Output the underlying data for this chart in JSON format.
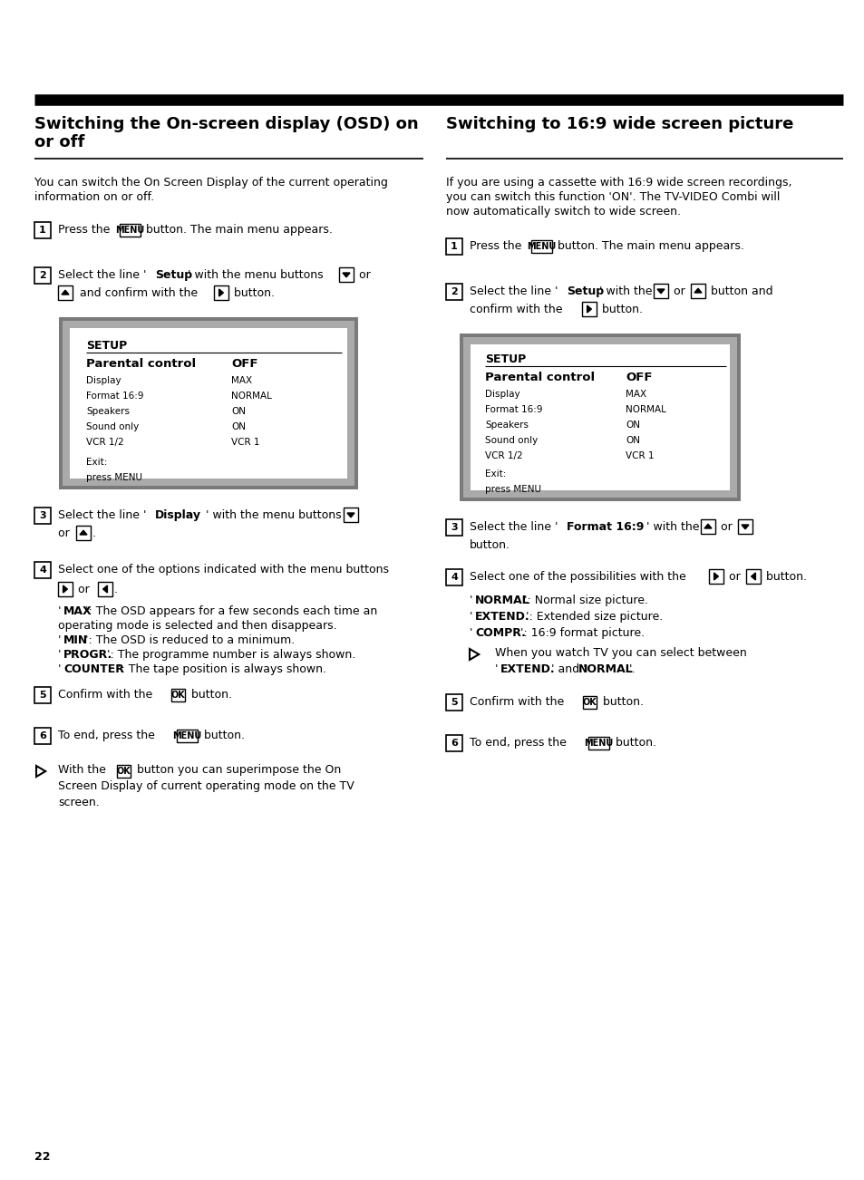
{
  "page_bg": "#ffffff",
  "section1_title_line1": "Switching the On-screen display (OSD) on",
  "section1_title_line2": "or off",
  "section2_title": "Switching to 16:9 wide screen picture",
  "page_number": "22",
  "screen_items": [
    [
      "Display",
      "MAX"
    ],
    [
      "Format 16:9",
      "NORMAL"
    ],
    [
      "Speakers",
      "ON"
    ],
    [
      "Sound only",
      "ON"
    ],
    [
      "VCR 1/2",
      "VCR 1"
    ]
  ]
}
